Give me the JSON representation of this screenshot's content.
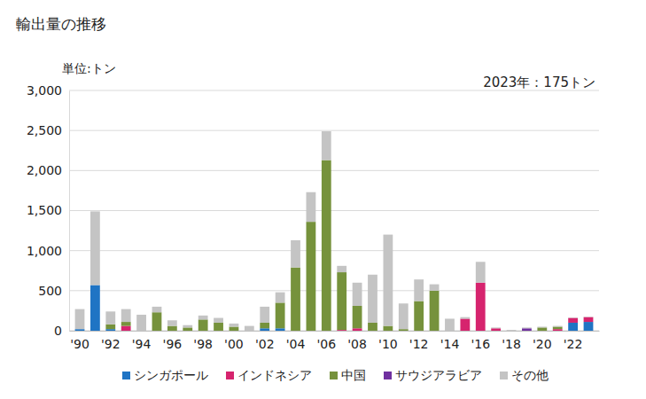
{
  "chart_data": {
    "type": "bar",
    "title": "輸出量の推移",
    "y_label": "単位:トン",
    "annotation": "2023年：175トン",
    "stacked": true,
    "grid": true,
    "legend": "bottom",
    "categories": [
      "'90",
      null,
      "'92",
      null,
      "'94",
      null,
      "'96",
      null,
      "'98",
      null,
      "'00",
      null,
      "'02",
      null,
      "'04",
      null,
      "'06",
      null,
      "'08",
      null,
      "'10",
      null,
      "'12",
      null,
      "'14",
      null,
      "'16",
      null,
      "'18",
      null,
      "'20",
      null,
      "'22",
      null
    ],
    "ylim": [
      0,
      3000
    ],
    "yticks": [
      0,
      500,
      {
        "value": 1000,
        "label": "1,000"
      },
      {
        "value": 1500,
        "label": "1,500"
      },
      {
        "value": 2000,
        "label": "2,000"
      },
      {
        "value": 2500,
        "label": "2,500"
      },
      {
        "value": 3000,
        "label": "3,000"
      }
    ],
    "series": [
      {
        "name": "シンガポール",
        "color": "#1f74c4",
        "values": [
          20,
          570,
          20,
          0,
          0,
          0,
          0,
          0,
          0,
          0,
          0,
          0,
          30,
          30,
          0,
          0,
          0,
          0,
          0,
          0,
          0,
          0,
          0,
          0,
          0,
          0,
          0,
          0,
          0,
          0,
          0,
          0,
          100,
          110
        ]
      },
      {
        "name": "インドネシア",
        "color": "#d6246e",
        "values": [
          0,
          0,
          0,
          60,
          0,
          0,
          0,
          0,
          0,
          0,
          0,
          0,
          0,
          0,
          0,
          0,
          0,
          10,
          30,
          0,
          0,
          0,
          0,
          0,
          0,
          150,
          600,
          30,
          0,
          0,
          0,
          20,
          60,
          60
        ]
      },
      {
        "name": "中国",
        "color": "#76923c",
        "values": [
          0,
          0,
          60,
          50,
          0,
          230,
          60,
          40,
          140,
          100,
          50,
          0,
          70,
          320,
          790,
          1360,
          2130,
          720,
          280,
          100,
          60,
          20,
          370,
          500,
          0,
          0,
          0,
          0,
          0,
          0,
          40,
          30,
          0,
          0
        ]
      },
      {
        "name": "サウジアラビア",
        "color": "#7030a0",
        "values": [
          0,
          0,
          0,
          0,
          0,
          0,
          0,
          0,
          0,
          0,
          0,
          0,
          0,
          0,
          0,
          0,
          0,
          0,
          0,
          0,
          0,
          0,
          0,
          0,
          0,
          0,
          0,
          0,
          0,
          30,
          0,
          0,
          0,
          0
        ]
      },
      {
        "name": "その他",
        "color": "#c4c4c4",
        "values": [
          250,
          920,
          160,
          160,
          200,
          70,
          70,
          30,
          50,
          60,
          40,
          60,
          200,
          130,
          340,
          370,
          360,
          80,
          290,
          600,
          1140,
          320,
          270,
          80,
          150,
          20,
          260,
          10,
          10,
          10,
          10,
          10,
          5,
          5
        ]
      }
    ]
  }
}
